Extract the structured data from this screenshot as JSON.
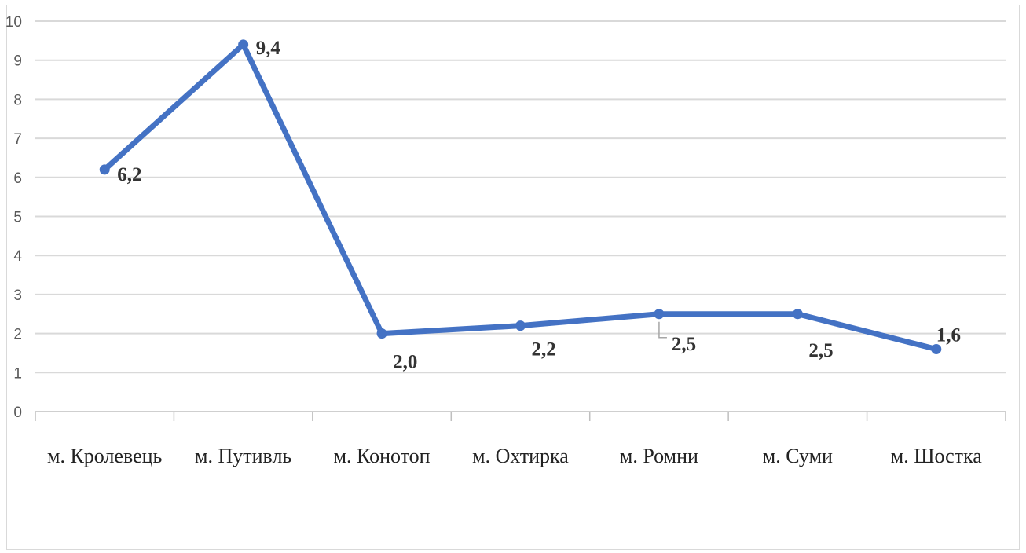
{
  "chart_data": {
    "type": "line",
    "categories": [
      "м. Кролевець",
      "м. Путивль",
      "м. Конотоп",
      "м. Охтирка",
      "м. Ромни",
      "м. Суми",
      "м. Шостка"
    ],
    "values": [
      6.2,
      9.4,
      2.0,
      2.2,
      2.5,
      2.5,
      1.6
    ],
    "data_labels": [
      "6,2",
      "9,4",
      "2,0",
      "2,2",
      "2,5",
      "2,5",
      "1,6"
    ],
    "ylim": [
      0,
      10
    ],
    "yticks": [
      "0",
      "1",
      "2",
      "3",
      "4",
      "5",
      "6",
      "7",
      "8",
      "9",
      "10"
    ],
    "grid": true,
    "legend": "none",
    "series_color": "#4472c4",
    "grid_color": "#d9d9d9",
    "axis_color": "#bfbfbf"
  }
}
